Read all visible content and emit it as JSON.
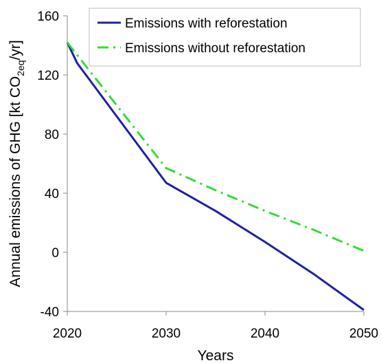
{
  "chart_data": {
    "type": "line",
    "xlabel": "Years",
    "ylabel_main": "Annual emissions of GHG [kt CO",
    "ylabel_sub": "2eq",
    "ylabel_tail": "/yr]",
    "xlim": [
      2020,
      2050
    ],
    "ylim": [
      -40,
      160
    ],
    "xticks": [
      2020,
      2030,
      2040,
      2050
    ],
    "yticks": [
      -40,
      0,
      40,
      80,
      120,
      160
    ],
    "grid": false,
    "legend_position": "top-right",
    "series": [
      {
        "name": "Emissions with reforestation",
        "color": "#1f1fa8",
        "style": "solid",
        "x": [
          2020,
          2021,
          2030,
          2035,
          2040,
          2045,
          2050
        ],
        "y": [
          142,
          128,
          47,
          28,
          7,
          -15,
          -39
        ]
      },
      {
        "name": "Emissions without reforestation",
        "color": "#33dd33",
        "style": "dashdot",
        "x": [
          2020,
          2030,
          2035,
          2040,
          2045,
          2050
        ],
        "y": [
          142,
          57,
          42,
          28,
          15,
          1
        ]
      }
    ]
  }
}
